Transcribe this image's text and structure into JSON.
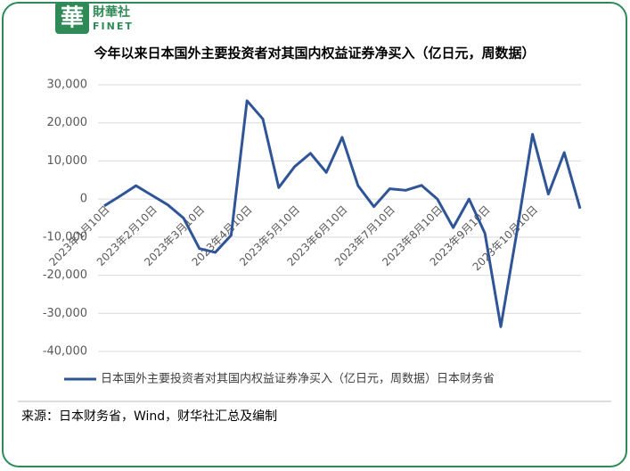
{
  "logo": {
    "mark": "華",
    "name": "財華社",
    "latin": "FINET"
  },
  "chart_data": {
    "type": "line",
    "title": "今年以来日本国外主要投资者对其国内权益证券净买入（亿日元，周数据）",
    "categories": [
      "2023年1月10日",
      null,
      null,
      "2023年2月10日",
      null,
      null,
      "2023年3月10日",
      null,
      null,
      "2023年4月10日",
      null,
      null,
      "2023年5月10日",
      null,
      null,
      "2023年6月10日",
      null,
      null,
      "2023年7月10日",
      null,
      null,
      "2023年8月10日",
      null,
      null,
      "2023年9月10日",
      null,
      null,
      "2023年10月10日",
      null,
      null,
      null
    ],
    "series": [
      {
        "name": "日本国外主要投资者对其国内权益证券净买入（亿日元，周数据）日本财务省",
        "color": "#2f5597",
        "values": [
          -1800,
          800,
          3500,
          1000,
          -1500,
          -5000,
          -13000,
          -14000,
          -9500,
          25800,
          21000,
          3000,
          8500,
          12000,
          7000,
          16200,
          3500,
          -2000,
          2700,
          2300,
          3600,
          0,
          -7500,
          0,
          -9000,
          -33500,
          -9000,
          17000,
          1300,
          12200,
          -2500
        ]
      }
    ],
    "ylim": [
      -40000,
      30000
    ],
    "yticks": [
      {
        "value": -40000,
        "label": "-40,000"
      },
      {
        "value": -30000,
        "label": "-30,000"
      },
      {
        "value": -20000,
        "label": "-20,000"
      },
      {
        "value": -10000,
        "label": "-10,000"
      },
      0,
      {
        "value": 10000,
        "label": "10,000"
      },
      {
        "value": 20000,
        "label": "20,000"
      },
      {
        "value": 30000,
        "label": "30,000"
      }
    ],
    "grid": true,
    "legend": "bottom",
    "source": "来源：日本财务省，Wind，财华社汇总及编制"
  }
}
